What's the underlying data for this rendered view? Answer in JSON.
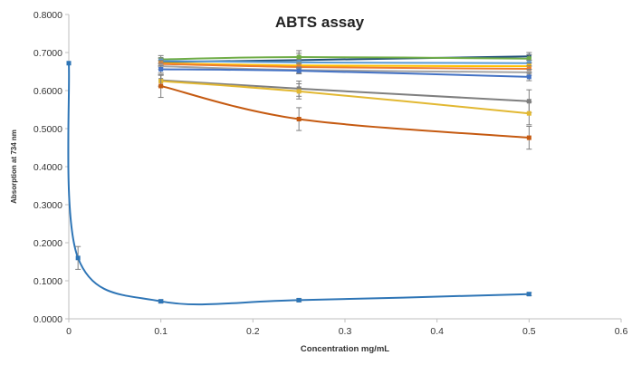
{
  "chart_data": {
    "type": "line",
    "title": "ABTS assay",
    "xlabel": "Concentration mg/mL",
    "ylabel": "Absorption at 734 nm",
    "xlim": [
      0,
      0.6
    ],
    "ylim": [
      0,
      0.8
    ],
    "x_ticks": [
      "0",
      "0.1",
      "0.2",
      "0.3",
      "0.4",
      "0.5",
      "0.6"
    ],
    "y_ticks": [
      "0.0000",
      "0.1000",
      "0.2000",
      "0.3000",
      "0.4000",
      "0.5000",
      "0.6000",
      "0.7000",
      "0.8000"
    ],
    "grid": false,
    "legend": "none",
    "series": [
      {
        "color": "#1f4e79",
        "x": [
          0.1,
          0.25,
          0.5
        ],
        "y": [
          0.675,
          0.68,
          0.69
        ],
        "err": [
          0.01,
          0.025,
          0.01
        ]
      },
      {
        "color": "#70ad47",
        "x": [
          0.1,
          0.25,
          0.5
        ],
        "y": [
          0.682,
          0.688,
          0.684
        ],
        "err": [
          0.01,
          0.01,
          0.01
        ]
      },
      {
        "color": "#5b9bd5",
        "x": [
          0.1,
          0.25,
          0.5
        ],
        "y": [
          0.678,
          0.674,
          0.672
        ],
        "err": [
          0.008,
          0.008,
          0.008
        ]
      },
      {
        "color": "#ffc000",
        "x": [
          0.1,
          0.25,
          0.5
        ],
        "y": [
          0.672,
          0.666,
          0.664
        ],
        "err": [
          0.008,
          0.008,
          0.008
        ]
      },
      {
        "color": "#ed7d31",
        "x": [
          0.1,
          0.25,
          0.5
        ],
        "y": [
          0.67,
          0.662,
          0.657
        ],
        "err": [
          0.008,
          0.008,
          0.008
        ]
      },
      {
        "color": "#a5a5a5",
        "x": [
          0.1,
          0.25,
          0.5
        ],
        "y": [
          0.664,
          0.654,
          0.648
        ],
        "err": [
          0.008,
          0.008,
          0.008
        ]
      },
      {
        "color": "#4472c4",
        "x": [
          0.1,
          0.25,
          0.5
        ],
        "y": [
          0.656,
          0.652,
          0.636
        ],
        "err": [
          0.01,
          0.008,
          0.01
        ]
      },
      {
        "color": "#7f7f7f",
        "x": [
          0.1,
          0.25,
          0.5
        ],
        "y": [
          0.627,
          0.605,
          0.572
        ],
        "err": [
          0.015,
          0.02,
          0.03
        ]
      },
      {
        "color": "#e2b832",
        "x": [
          0.1,
          0.25,
          0.5
        ],
        "y": [
          0.625,
          0.598,
          0.54
        ],
        "err": [
          0.015,
          0.02,
          0.03
        ]
      },
      {
        "color": "#c55a11",
        "x": [
          0.1,
          0.25,
          0.5
        ],
        "y": [
          0.612,
          0.525,
          0.476
        ],
        "err": [
          0.03,
          0.03,
          0.03
        ]
      },
      {
        "color": "#2e75b6",
        "x": [
          0,
          0.01,
          0.1,
          0.25,
          0.5
        ],
        "y": [
          0.672,
          0.16,
          0.046,
          0.049,
          0.065
        ],
        "err": [
          0,
          0.03,
          0.004,
          0.004,
          0.004
        ]
      }
    ]
  }
}
